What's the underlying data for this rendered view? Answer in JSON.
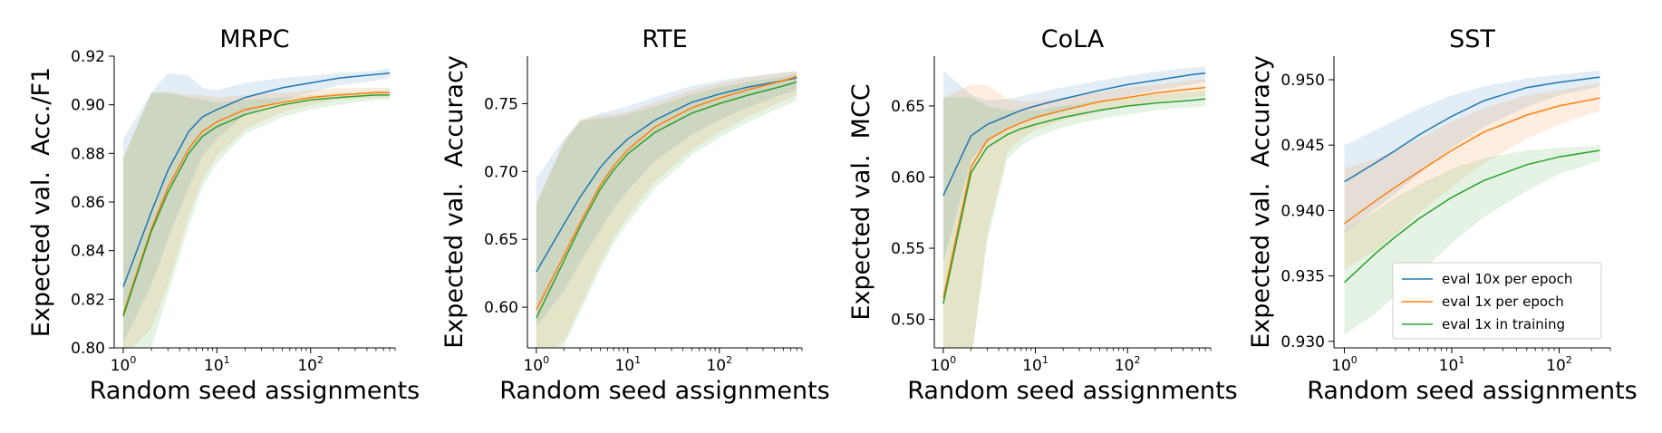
{
  "chart_data": [
    {
      "type": "line",
      "title": "MRPC",
      "xlabel": "Random seed assignments",
      "ylabel": "Expected val.  Acc./F1",
      "xscale": "log",
      "xlim": [
        0.8,
        800
      ],
      "ylim": [
        0.8,
        0.92
      ],
      "yticks": [
        "0.80",
        "0.82",
        "0.84",
        "0.86",
        "0.88",
        "0.90",
        "0.92"
      ],
      "xticks": [
        "10^0",
        "10^1",
        "10^2"
      ],
      "series": [
        {
          "color": "#1f77b4",
          "x": [
            1,
            2,
            3,
            5,
            7,
            10,
            20,
            50,
            100,
            200,
            500,
            700
          ],
          "y": [
            0.825,
            0.856,
            0.873,
            0.889,
            0.895,
            0.898,
            0.903,
            0.907,
            0.909,
            0.911,
            0.9125,
            0.913
          ],
          "lower": [
            0.802,
            0.826,
            0.845,
            0.866,
            0.879,
            0.886,
            0.896,
            0.902,
            0.905,
            0.908,
            0.91,
            0.911
          ],
          "upper": [
            0.886,
            0.905,
            0.913,
            0.912,
            0.907,
            0.906,
            0.909,
            0.911,
            0.912,
            0.913,
            0.914,
            0.915
          ]
        },
        {
          "color": "#ff7f0e",
          "x": [
            1,
            2,
            3,
            5,
            7,
            10,
            20,
            50,
            100,
            200,
            500,
            700
          ],
          "y": [
            0.814,
            0.849,
            0.866,
            0.882,
            0.889,
            0.893,
            0.898,
            0.901,
            0.903,
            0.904,
            0.905,
            0.905
          ],
          "lower": [
            0.796,
            0.808,
            0.826,
            0.854,
            0.869,
            0.879,
            0.89,
            0.897,
            0.9,
            0.902,
            0.903,
            0.903
          ],
          "upper": [
            0.878,
            0.905,
            0.905,
            0.904,
            0.904,
            0.903,
            0.904,
            0.905,
            0.906,
            0.907,
            0.907,
            0.907
          ]
        },
        {
          "color": "#2ca02c",
          "x": [
            1,
            2,
            3,
            5,
            7,
            10,
            20,
            50,
            100,
            200,
            500,
            700
          ],
          "y": [
            0.813,
            0.848,
            0.864,
            0.88,
            0.887,
            0.891,
            0.896,
            0.9,
            0.902,
            0.903,
            0.904,
            0.904
          ],
          "lower": [
            0.79,
            0.8,
            0.822,
            0.85,
            0.866,
            0.876,
            0.888,
            0.895,
            0.898,
            0.9,
            0.902,
            0.902
          ],
          "upper": [
            0.878,
            0.905,
            0.905,
            0.903,
            0.902,
            0.901,
            0.902,
            0.903,
            0.904,
            0.905,
            0.906,
            0.906
          ]
        }
      ]
    },
    {
      "type": "line",
      "title": "RTE",
      "xlabel": "Random seed assignments",
      "ylabel": "Expected val.  Accuracy",
      "xscale": "log",
      "xlim": [
        0.8,
        800
      ],
      "ylim": [
        0.57,
        0.785
      ],
      "yticks": [
        "0.60",
        "0.65",
        "0.70",
        "0.75"
      ],
      "xticks": [
        "10^0",
        "10^1",
        "10^2"
      ],
      "series": [
        {
          "color": "#1f77b4",
          "x": [
            1,
            2,
            3,
            5,
            7,
            10,
            20,
            50,
            100,
            200,
            500,
            700
          ],
          "y": [
            0.626,
            0.661,
            0.681,
            0.703,
            0.714,
            0.724,
            0.738,
            0.751,
            0.757,
            0.762,
            0.767,
            0.769
          ],
          "lower": [
            0.585,
            0.612,
            0.633,
            0.657,
            0.673,
            0.686,
            0.708,
            0.727,
            0.738,
            0.747,
            0.757,
            0.76
          ],
          "upper": [
            0.695,
            0.724,
            0.737,
            0.743,
            0.745,
            0.748,
            0.755,
            0.763,
            0.767,
            0.77,
            0.773,
            0.774
          ]
        },
        {
          "color": "#ff7f0e",
          "x": [
            1,
            2,
            3,
            5,
            7,
            10,
            20,
            50,
            100,
            200,
            500,
            700
          ],
          "y": [
            0.598,
            0.638,
            0.662,
            0.69,
            0.704,
            0.716,
            0.733,
            0.747,
            0.754,
            0.76,
            0.767,
            0.77
          ],
          "lower": [
            0.56,
            0.575,
            0.6,
            0.632,
            0.651,
            0.667,
            0.693,
            0.716,
            0.729,
            0.74,
            0.752,
            0.756
          ],
          "upper": [
            0.677,
            0.722,
            0.739,
            0.741,
            0.742,
            0.744,
            0.751,
            0.76,
            0.765,
            0.769,
            0.773,
            0.774
          ]
        },
        {
          "color": "#2ca02c",
          "x": [
            1,
            2,
            3,
            5,
            7,
            10,
            20,
            50,
            100,
            200,
            500,
            700
          ],
          "y": [
            0.592,
            0.634,
            0.659,
            0.687,
            0.701,
            0.713,
            0.729,
            0.743,
            0.75,
            0.756,
            0.763,
            0.766
          ],
          "lower": [
            0.555,
            0.571,
            0.596,
            0.628,
            0.647,
            0.662,
            0.688,
            0.712,
            0.725,
            0.736,
            0.748,
            0.752
          ],
          "upper": [
            0.676,
            0.72,
            0.737,
            0.739,
            0.74,
            0.742,
            0.748,
            0.757,
            0.762,
            0.766,
            0.77,
            0.772
          ]
        }
      ]
    },
    {
      "type": "line",
      "title": "CoLA",
      "xlabel": "Random seed assignments",
      "ylabel": "Expected val.  MCC",
      "xscale": "log",
      "xlim": [
        0.8,
        800
      ],
      "ylim": [
        0.48,
        0.685
      ],
      "yticks": [
        "0.50",
        "0.55",
        "0.60",
        "0.65"
      ],
      "xticks": [
        "10^0",
        "10^1",
        "10^2"
      ],
      "series": [
        {
          "color": "#1f77b4",
          "x": [
            1,
            2,
            3,
            5,
            7,
            10,
            20,
            50,
            100,
            200,
            500,
            700
          ],
          "y": [
            0.587,
            0.629,
            0.637,
            0.643,
            0.647,
            0.65,
            0.655,
            0.661,
            0.665,
            0.668,
            0.672,
            0.673
          ],
          "lower": [
            0.54,
            0.612,
            0.625,
            0.634,
            0.638,
            0.641,
            0.646,
            0.653,
            0.657,
            0.661,
            0.665,
            0.667
          ],
          "upper": [
            0.675,
            0.658,
            0.654,
            0.655,
            0.657,
            0.659,
            0.663,
            0.668,
            0.671,
            0.674,
            0.677,
            0.678
          ]
        },
        {
          "color": "#ff7f0e",
          "x": [
            1,
            2,
            3,
            5,
            7,
            10,
            20,
            50,
            100,
            200,
            500,
            700
          ],
          "y": [
            0.515,
            0.607,
            0.626,
            0.634,
            0.638,
            0.642,
            0.647,
            0.653,
            0.656,
            0.659,
            0.662,
            0.663
          ],
          "lower": [
            0.47,
            0.47,
            0.56,
            0.618,
            0.627,
            0.633,
            0.64,
            0.646,
            0.65,
            0.653,
            0.656,
            0.657
          ],
          "upper": [
            0.656,
            0.665,
            0.665,
            0.655,
            0.653,
            0.653,
            0.656,
            0.66,
            0.663,
            0.665,
            0.668,
            0.669
          ]
        },
        {
          "color": "#2ca02c",
          "x": [
            1,
            2,
            3,
            5,
            7,
            10,
            20,
            50,
            100,
            200,
            500,
            700
          ],
          "y": [
            0.511,
            0.603,
            0.621,
            0.63,
            0.634,
            0.637,
            0.642,
            0.647,
            0.65,
            0.652,
            0.654,
            0.655
          ],
          "lower": [
            0.47,
            0.47,
            0.555,
            0.613,
            0.622,
            0.628,
            0.635,
            0.641,
            0.644,
            0.647,
            0.649,
            0.65
          ],
          "upper": [
            0.656,
            0.656,
            0.65,
            0.647,
            0.647,
            0.647,
            0.65,
            0.654,
            0.656,
            0.658,
            0.66,
            0.661
          ]
        }
      ]
    },
    {
      "type": "line",
      "title": "SST",
      "xlabel": "Random seed assignments",
      "ylabel": "Expected val.  Accuracy",
      "xscale": "log",
      "xlim": [
        0.8,
        300
      ],
      "ylim": [
        0.9295,
        0.9518
      ],
      "yticks": [
        "0.930",
        "0.935",
        "0.940",
        "0.945",
        "0.950"
      ],
      "xticks": [
        "10^0",
        "10^1",
        "10^2"
      ],
      "series": [
        {
          "name": "eval 10x per epoch",
          "color": "#1f77b4",
          "x": [
            1,
            2,
            3,
            5,
            10,
            20,
            50,
            100,
            240
          ],
          "y": [
            0.9422,
            0.9437,
            0.9446,
            0.9458,
            0.9472,
            0.9484,
            0.9494,
            0.9498,
            0.9502
          ],
          "lower": [
            0.9383,
            0.9402,
            0.9413,
            0.9428,
            0.9448,
            0.9464,
            0.9479,
            0.9488,
            0.9495
          ],
          "upper": [
            0.945,
            0.9462,
            0.9469,
            0.9478,
            0.9488,
            0.9495,
            0.9501,
            0.9504,
            0.9507
          ]
        },
        {
          "name": "eval 1x per epoch",
          "color": "#ff7f0e",
          "x": [
            1,
            2,
            3,
            5,
            10,
            20,
            50,
            100,
            240
          ],
          "y": [
            0.939,
            0.9408,
            0.9418,
            0.943,
            0.9446,
            0.946,
            0.9473,
            0.948,
            0.9486
          ],
          "lower": [
            0.9355,
            0.937,
            0.9382,
            0.9398,
            0.9418,
            0.9436,
            0.9455,
            0.9466,
            0.9476
          ],
          "upper": [
            0.9432,
            0.944,
            0.9446,
            0.9455,
            0.9468,
            0.9478,
            0.9488,
            0.9492,
            0.9497
          ]
        },
        {
          "name": "eval 1x in training",
          "color": "#2ca02c",
          "x": [
            1,
            2,
            3,
            5,
            10,
            20,
            50,
            100,
            240
          ],
          "y": [
            0.9345,
            0.9368,
            0.938,
            0.9394,
            0.941,
            0.9423,
            0.9435,
            0.9441,
            0.9446
          ],
          "lower": [
            0.9305,
            0.9322,
            0.9335,
            0.9352,
            0.9375,
            0.9395,
            0.9415,
            0.9428,
            0.9438
          ],
          "upper": [
            0.9385,
            0.94,
            0.941,
            0.942,
            0.9432,
            0.944,
            0.9446,
            0.9448,
            0.945
          ]
        }
      ],
      "legend": "lower-right"
    }
  ]
}
